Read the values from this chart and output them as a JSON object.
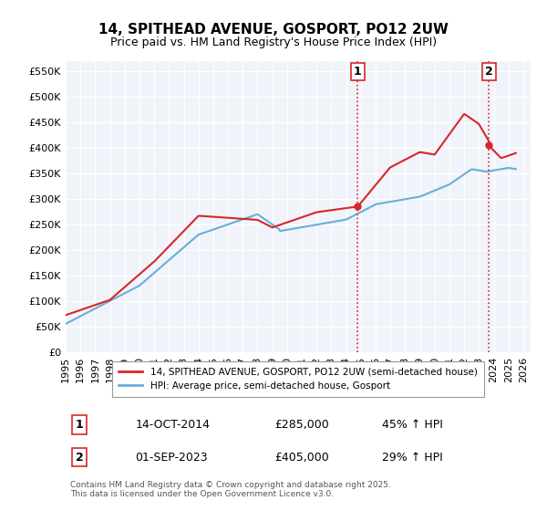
{
  "title": "14, SPITHEAD AVENUE, GOSPORT, PO12 2UW",
  "subtitle": "Price paid vs. HM Land Registry's House Price Index (HPI)",
  "ylabel_ticks": [
    "£0",
    "£50K",
    "£100K",
    "£150K",
    "£200K",
    "£250K",
    "£300K",
    "£350K",
    "£400K",
    "£450K",
    "£500K",
    "£550K"
  ],
  "ytick_values": [
    0,
    50000,
    100000,
    150000,
    200000,
    250000,
    300000,
    350000,
    400000,
    450000,
    500000,
    550000
  ],
  "ylim": [
    0,
    570000
  ],
  "xlim_start": 1995.0,
  "xlim_end": 2026.5,
  "xtick_years": [
    1995,
    1996,
    1997,
    1998,
    1999,
    2000,
    2001,
    2002,
    2003,
    2004,
    2005,
    2006,
    2007,
    2008,
    2009,
    2010,
    2011,
    2012,
    2013,
    2014,
    2015,
    2016,
    2017,
    2018,
    2019,
    2020,
    2021,
    2022,
    2023,
    2024,
    2025,
    2026
  ],
  "hpi_line_color": "#6baed6",
  "price_line_color": "#d62728",
  "vline_color": "#d62728",
  "vline_style": ":",
  "point1_x": 2014.79,
  "point1_y": 285000,
  "point2_x": 2023.67,
  "point2_y": 405000,
  "annotation1_label": "1",
  "annotation2_label": "2",
  "legend_label_red": "14, SPITHEAD AVENUE, GOSPORT, PO12 2UW (semi-detached house)",
  "legend_label_blue": "HPI: Average price, semi-detached house, Gosport",
  "table_row1": [
    "1",
    "14-OCT-2014",
    "£285,000",
    "45% ↑ HPI"
  ],
  "table_row2": [
    "2",
    "01-SEP-2023",
    "£405,000",
    "29% ↑ HPI"
  ],
  "footer": "Contains HM Land Registry data © Crown copyright and database right 2025.\nThis data is licensed under the Open Government Licence v3.0.",
  "background_color": "#ffffff",
  "plot_bg_color": "#f0f4fa",
  "grid_color": "#ffffff"
}
